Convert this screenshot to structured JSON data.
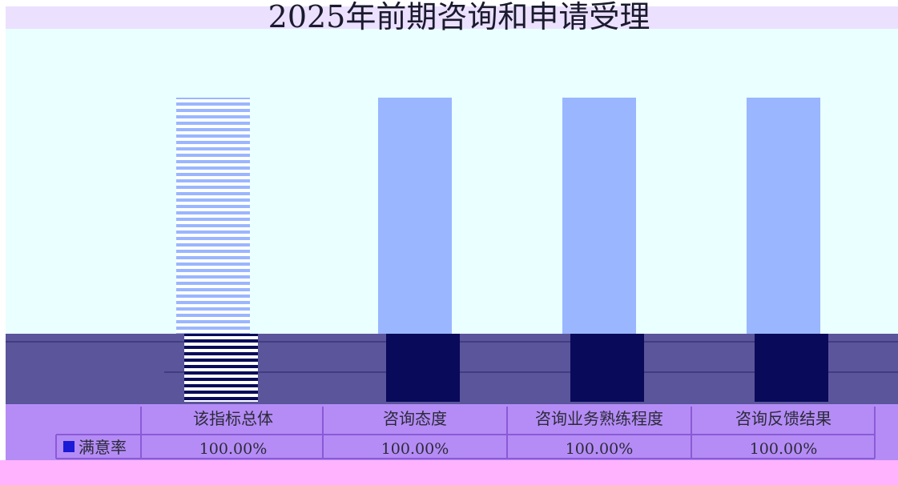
{
  "chart_data": {
    "type": "bar",
    "title": "2025年前期咨询和申请受理",
    "categories": [
      "该指标总体",
      "咨询态度",
      "咨询业务熟练程度",
      "咨询反馈结果"
    ],
    "series": [
      {
        "name": "满意率",
        "values": [
          100,
          100,
          100,
          100
        ],
        "labels": [
          "100.00%",
          "100.00%",
          "100.00%",
          "100.00%"
        ]
      }
    ],
    "ylim": [
      0,
      100
    ],
    "grid": false,
    "legend": "bottom-left, inside data table",
    "data_table": true,
    "colors": {
      "plot_bg": "#eaffff",
      "bar": "#9ab6ff",
      "bar_highlight_stripe": "#9ab6ff",
      "floor": "#5b559b",
      "floor_shadow": "#0a0a5a",
      "table_bg": "#b58cf5",
      "table_line": "#8a5ad6",
      "title_band": "#ece0ff",
      "legend_marker": "#1a1ad6",
      "page_bottom": "#ffb3ff"
    }
  }
}
